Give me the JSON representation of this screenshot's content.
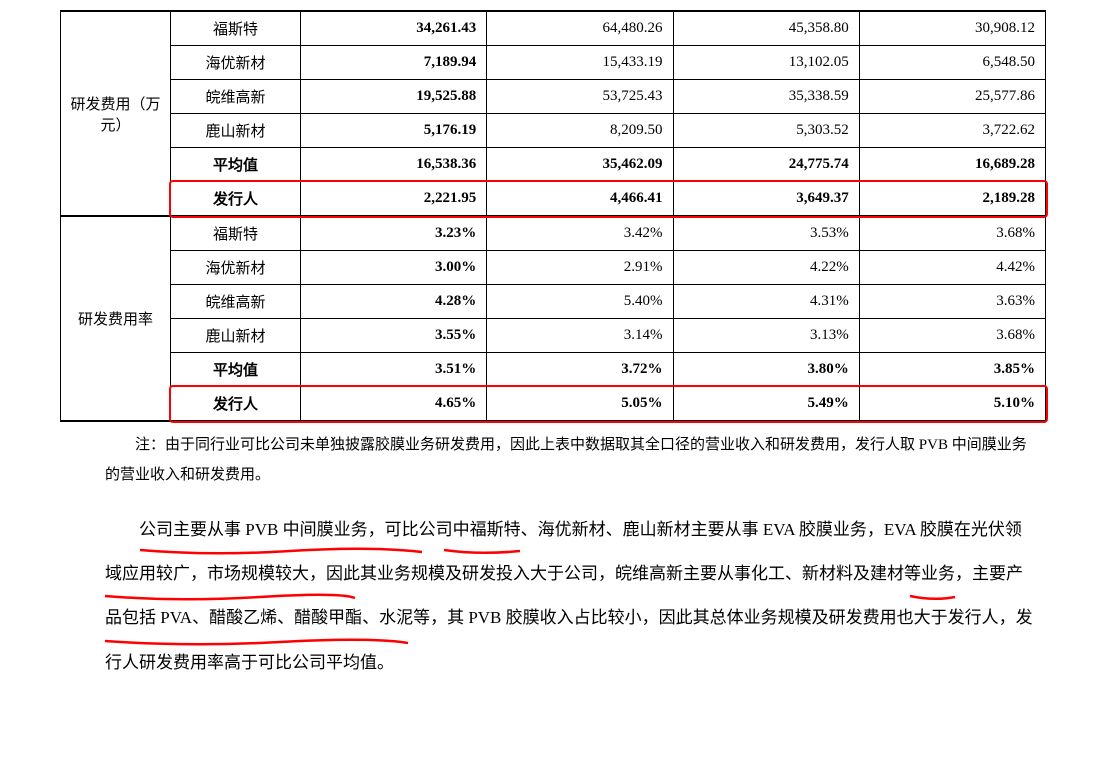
{
  "table": {
    "section1": {
      "label": "研发费用（万元）",
      "rows": [
        {
          "company": "福斯特",
          "c1": "34,261.43",
          "c2": "64,480.26",
          "c3": "45,358.80",
          "c4": "30,908.12",
          "bold": true,
          "c234bold": false
        },
        {
          "company": "海优新材",
          "c1": "7,189.94",
          "c2": "15,433.19",
          "c3": "13,102.05",
          "c4": "6,548.50",
          "bold": true,
          "c234bold": false
        },
        {
          "company": "皖维高新",
          "c1": "19,525.88",
          "c2": "53,725.43",
          "c3": "35,338.59",
          "c4": "25,577.86",
          "bold": true,
          "c234bold": false
        },
        {
          "company": "鹿山新材",
          "c1": "5,176.19",
          "c2": "8,209.50",
          "c3": "5,303.52",
          "c4": "3,722.62",
          "bold": true,
          "c234bold": false
        },
        {
          "company": "平均值",
          "c1": "16,538.36",
          "c2": "35,462.09",
          "c3": "24,775.74",
          "c4": "16,689.28",
          "bold": true,
          "c234bold": true
        },
        {
          "company": "发行人",
          "c1": "2,221.95",
          "c2": "4,466.41",
          "c3": "3,649.37",
          "c4": "2,189.28",
          "bold": true,
          "c234bold": true
        }
      ]
    },
    "section2": {
      "label": "研发费用率",
      "rows": [
        {
          "company": "福斯特",
          "c1": "3.23%",
          "c2": "3.42%",
          "c3": "3.53%",
          "c4": "3.68%",
          "bold": true,
          "c234bold": false
        },
        {
          "company": "海优新材",
          "c1": "3.00%",
          "c2": "2.91%",
          "c3": "4.22%",
          "c4": "4.42%",
          "bold": true,
          "c234bold": false
        },
        {
          "company": "皖维高新",
          "c1": "4.28%",
          "c2": "5.40%",
          "c3": "4.31%",
          "c4": "3.63%",
          "bold": true,
          "c234bold": false
        },
        {
          "company": "鹿山新材",
          "c1": "3.55%",
          "c2": "3.14%",
          "c3": "3.13%",
          "c4": "3.68%",
          "bold": true,
          "c234bold": false
        },
        {
          "company": "平均值",
          "c1": "3.51%",
          "c2": "3.72%",
          "c3": "3.80%",
          "c4": "3.85%",
          "bold": true,
          "c234bold": true
        },
        {
          "company": "发行人",
          "c1": "4.65%",
          "c2": "5.05%",
          "c3": "5.49%",
          "c4": "5.10%",
          "bold": true,
          "c234bold": true
        }
      ]
    }
  },
  "note": {
    "prefix": "注：",
    "text": "由于同行业可比公司未单独披露胶膜业务研发费用，因此上表中数据取其全口径的营业收入和研发费用，发行人取 PVB 中间膜业务的营业收入和研发费用。"
  },
  "paragraph": {
    "text": "公司主要从事 PVB 中间膜业务，可比公司中福斯特、海优新材、鹿山新材主要从事 EVA 胶膜业务，EVA 胶膜在光伏领域应用较广，市场规模较大，因此其业务规模及研发投入大于公司，皖维高新主要从事化工、新材料及建材等业务，主要产品包括 PVA、醋酸乙烯、醋酸甲酯、水泥等，其 PVB 胶膜收入占比较小，因此其总体业务规模及研发费用也大于发行人，发行人研发费用率高于可比公司平均值。"
  },
  "colors": {
    "highlight_red": "#ff0000",
    "text_black": "#000000",
    "background": "#ffffff"
  },
  "red_annotations": {
    "table_boxes": [
      {
        "row_index": 6,
        "label": "issuer-rd-expense-row"
      },
      {
        "row_index": 12,
        "label": "issuer-rd-rate-row"
      }
    ],
    "text_underlines": [
      "公司主要从事 PVB 中间膜业务",
      "可比公司",
      "主要从事 EVA 胶膜业务",
      "因此",
      "其业务规模及研发投入大于公司"
    ]
  }
}
